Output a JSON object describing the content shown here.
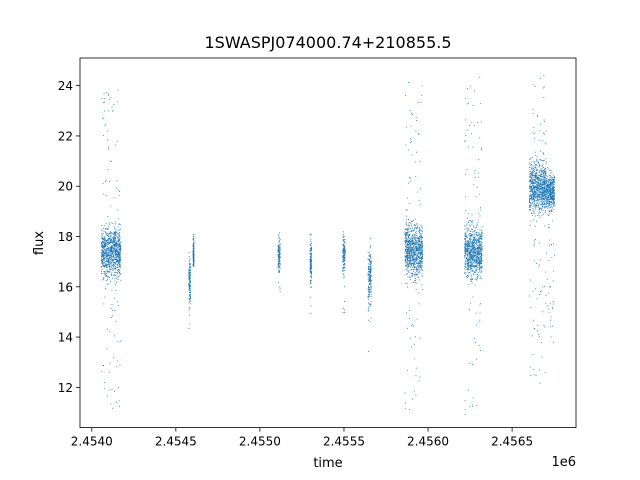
{
  "chart_data": {
    "type": "scatter",
    "title": "1SWASPJ074000.74+210855.5",
    "xlabel": "time",
    "ylabel": "flux",
    "x_offset_label": "1e6",
    "x_unit_scale": 1000000,
    "xlim": [
      2453930,
      2456880
    ],
    "ylim": [
      10.4,
      25.1
    ],
    "x_ticks": [
      2454000,
      2454500,
      2455000,
      2455500,
      2456000,
      2456500
    ],
    "x_tick_labels": [
      "2.4540",
      "2.4545",
      "2.4550",
      "2.4555",
      "2.4560",
      "2.4565"
    ],
    "y_ticks": [
      12,
      14,
      16,
      18,
      20,
      22,
      24
    ],
    "y_tick_labels": [
      "12",
      "14",
      "16",
      "18",
      "20",
      "22",
      "24"
    ],
    "grid": false,
    "legend": "none",
    "marker_color": "#1f77b4",
    "series": [
      {
        "observing_seasons": [
          {
            "x_range": [
              2454055,
              2454170
            ],
            "median": 17.4,
            "core_spread": 0.7,
            "y_range": [
              11.1,
              23.9
            ]
          },
          {
            "x_range": [
              2454575,
              2454585
            ],
            "median": 16.3,
            "core_spread": 0.6,
            "y_range": [
              14.3,
              17.6
            ]
          },
          {
            "x_range": [
              2454600,
              2454606
            ],
            "median": 17.2,
            "core_spread": 0.5,
            "y_range": [
              16.8,
              18.1
            ]
          },
          {
            "x_range": [
              2455105,
              2455118
            ],
            "median": 17.3,
            "core_spread": 0.5,
            "y_range": [
              15.8,
              18.2
            ]
          },
          {
            "x_range": [
              2455295,
              2455305
            ],
            "median": 17.0,
            "core_spread": 0.6,
            "y_range": [
              14.8,
              18.6
            ]
          },
          {
            "x_range": [
              2455490,
              2455505
            ],
            "median": 17.3,
            "core_spread": 0.5,
            "y_range": [
              14.9,
              18.8
            ]
          },
          {
            "x_range": [
              2455640,
              2455660
            ],
            "median": 16.5,
            "core_spread": 0.9,
            "y_range": [
              13.3,
              18.0
            ]
          },
          {
            "x_range": [
              2455860,
              2455965
            ],
            "median": 17.5,
            "core_spread": 0.7,
            "y_range": [
              10.9,
              24.2
            ]
          },
          {
            "x_range": [
              2456215,
              2456320
            ],
            "median": 17.4,
            "core_spread": 0.7,
            "y_range": [
              10.9,
              24.4
            ]
          },
          {
            "x_range": [
              2456600,
              2456700
            ],
            "median": 20.0,
            "core_spread": 0.7,
            "y_range": [
              11.9,
              24.5
            ]
          },
          {
            "x_range": [
              2456700,
              2456750
            ],
            "median": 19.8,
            "core_spread": 0.5,
            "y_range": [
              13.6,
              20.8
            ]
          }
        ]
      }
    ]
  }
}
